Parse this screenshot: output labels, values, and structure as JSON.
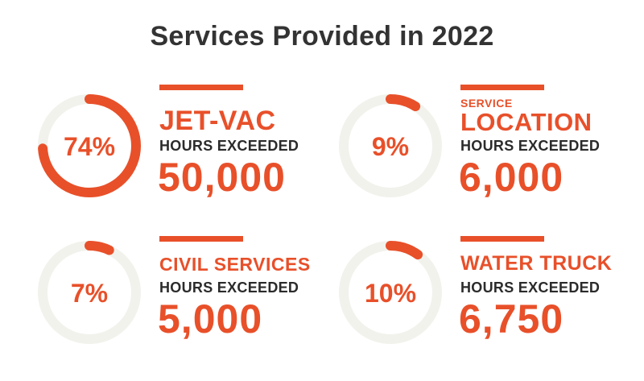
{
  "title": "Services Provided in 2022",
  "colors": {
    "accent": "#e8502a",
    "track": "#f1f2ec",
    "text": "#2b2b2b",
    "title": "#333333"
  },
  "chart_data": {
    "type": "pie",
    "title": "Services Provided in 2022",
    "items": [
      {
        "category_small": "",
        "category": "JET-VAC",
        "percent": 74,
        "percent_label": "74%",
        "subtitle": "HOURS EXCEEDED",
        "hours": "50,000"
      },
      {
        "category_small": "SERVICE",
        "category": "LOCATION",
        "percent": 9,
        "percent_label": "9%",
        "subtitle": "HOURS EXCEEDED",
        "hours": "6,000"
      },
      {
        "category_small": "",
        "category": "CIVIL SERVICES",
        "percent": 7,
        "percent_label": "7%",
        "subtitle": "HOURS EXCEEDED",
        "hours": "5,000"
      },
      {
        "category_small": "",
        "category": "WATER TRUCK",
        "percent": 10,
        "percent_label": "10%",
        "subtitle": "HOURS EXCEEDED",
        "hours": "6,750"
      }
    ]
  }
}
